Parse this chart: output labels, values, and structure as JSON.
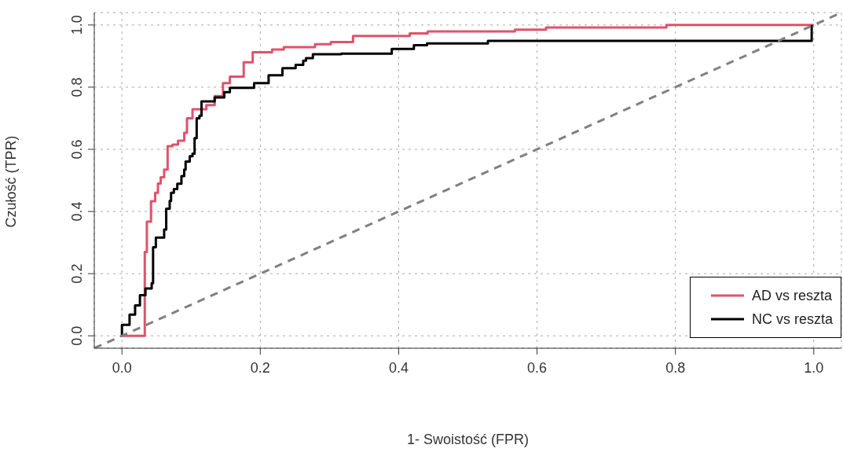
{
  "chart_data": {
    "type": "step",
    "xlabel": "1- Swoistość (FPR)",
    "ylabel": "Czułość (TPR)",
    "xlim": [
      -0.04,
      1.04
    ],
    "ylim": [
      -0.04,
      1.04
    ],
    "xticks": [
      {
        "value": 0,
        "label": "0.0"
      },
      0.2,
      0.4,
      0.6,
      0.8,
      {
        "value": 1,
        "label": "1.0"
      }
    ],
    "yticks": [
      {
        "value": 0,
        "label": "0.0"
      },
      0.2,
      0.4,
      0.6,
      0.8,
      {
        "value": 1,
        "label": "1.0"
      }
    ],
    "grid": true,
    "legend": "bottom right",
    "series": [
      {
        "name": "AD vs reszta",
        "color": "#df536b",
        "x": [
          0,
          0.033,
          0.036,
          0.042,
          0.048,
          0.052,
          0.056,
          0.061,
          0.066,
          0.073,
          0.081,
          0.09,
          0.094,
          0.102,
          0.122,
          0.134,
          0.146,
          0.156,
          0.176,
          0.189,
          0.217,
          0.234,
          0.279,
          0.302,
          0.334,
          0.416,
          0.442,
          0.568,
          0.613,
          0.787,
          1.0
        ],
        "values": [
          0,
          0.27,
          0.367,
          0.433,
          0.46,
          0.49,
          0.51,
          0.535,
          0.61,
          0.615,
          0.628,
          0.653,
          0.7,
          0.729,
          0.742,
          0.771,
          0.813,
          0.834,
          0.88,
          0.912,
          0.921,
          0.929,
          0.938,
          0.945,
          0.965,
          0.973,
          0.979,
          0.985,
          0.992,
          1.0,
          1.0
        ]
      },
      {
        "name": "NC vs reszta",
        "color": "#000000",
        "x": [
          0,
          0,
          0.011,
          0.019,
          0.026,
          0.034,
          0.043,
          0.045,
          0.049,
          0.061,
          0.064,
          0.069,
          0.071,
          0.075,
          0.08,
          0.086,
          0.09,
          0.092,
          0.098,
          0.102,
          0.105,
          0.108,
          0.112,
          0.115,
          0.134,
          0.148,
          0.156,
          0.191,
          0.212,
          0.232,
          0.251,
          0.262,
          0.266,
          0.276,
          0.317,
          0.39,
          0.422,
          0.441,
          0.529,
          0.997
        ],
        "values": [
          0,
          0.035,
          0.068,
          0.098,
          0.131,
          0.152,
          0.169,
          0.285,
          0.316,
          0.342,
          0.409,
          0.434,
          0.46,
          0.472,
          0.489,
          0.514,
          0.535,
          0.561,
          0.578,
          0.586,
          0.636,
          0.7,
          0.708,
          0.754,
          0.767,
          0.784,
          0.798,
          0.813,
          0.838,
          0.861,
          0.872,
          0.885,
          0.893,
          0.906,
          0.908,
          0.923,
          0.935,
          0.941,
          0.949,
          1.0
        ]
      },
      {
        "type": "line",
        "color": "#808080",
        "line_style": "dashed",
        "x": [
          -0.04,
          1.04
        ],
        "values": [
          -0.04,
          1.04
        ]
      }
    ]
  }
}
